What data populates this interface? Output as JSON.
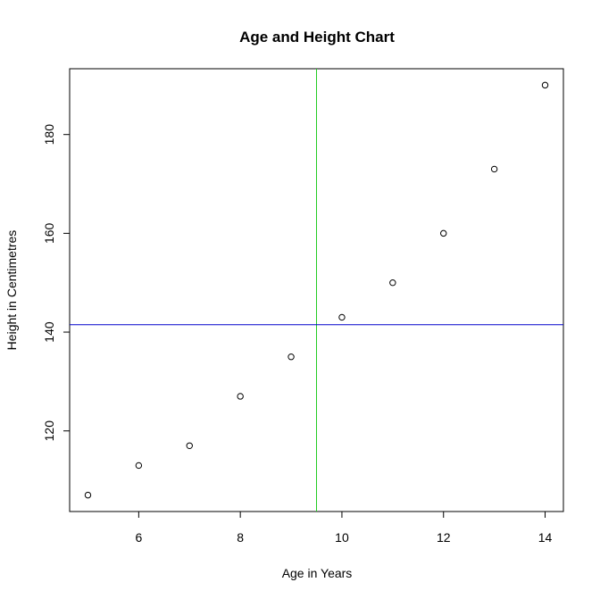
{
  "chart_data": {
    "type": "scatter",
    "title": "Age and Height Chart",
    "xlabel": "Age in Years",
    "ylabel": "Height in Centimetres",
    "x": [
      5,
      6,
      7,
      8,
      9,
      10,
      11,
      12,
      13,
      14
    ],
    "y": [
      107,
      113,
      117,
      127,
      135,
      143,
      150,
      160,
      173,
      190
    ],
    "xlim": [
      4.64,
      14.36
    ],
    "ylim": [
      103.68,
      193.32
    ],
    "xticks": [
      6,
      8,
      10,
      12,
      14
    ],
    "yticks": [
      120,
      140,
      160,
      180
    ],
    "grid": false,
    "reference_lines": [
      {
        "orientation": "vertical",
        "value": 9.5,
        "color": "#22cc22"
      },
      {
        "orientation": "horizontal",
        "value": 141.5,
        "color": "#0000cc"
      }
    ]
  }
}
